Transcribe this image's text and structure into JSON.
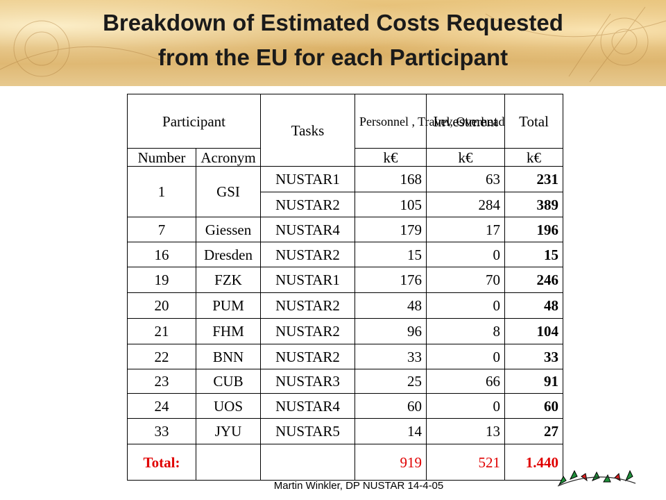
{
  "title": {
    "line1": "Breakdown of Estimated Costs Requested",
    "line2": "from the EU for each Participant"
  },
  "table": {
    "headers": {
      "participant": "Participant",
      "tasks": "Tasks",
      "personnel": "Personnel , Travel, Overhead",
      "investment": "Investment",
      "total": "Total",
      "number": "Number",
      "acronym": "Acronym",
      "unit_personnel": "k€",
      "unit_investment": "k€",
      "unit_total": "k€"
    },
    "rows": [
      {
        "number": "1",
        "acronym": "GSI",
        "task": "NUSTAR1",
        "personnel": "168",
        "investment": "63",
        "total": "231"
      },
      {
        "number": "",
        "acronym": "",
        "task": "NUSTAR2",
        "personnel": "105",
        "investment": "284",
        "total": "389"
      },
      {
        "number": "7",
        "acronym": "Giessen",
        "task": "NUSTAR4",
        "personnel": "179",
        "investment": "17",
        "total": "196"
      },
      {
        "number": "16",
        "acronym": "Dresden",
        "task": "NUSTAR2",
        "personnel": "15",
        "investment": "0",
        "total": "15"
      },
      {
        "number": "19",
        "acronym": "FZK",
        "task": "NUSTAR1",
        "personnel": "176",
        "investment": "70",
        "total": "246"
      },
      {
        "number": "20",
        "acronym": "PUM",
        "task": "NUSTAR2",
        "personnel": "48",
        "investment": "0",
        "total": "48"
      },
      {
        "number": "21",
        "acronym": "FHM",
        "task": "NUSTAR2",
        "personnel": "96",
        "investment": "8",
        "total": "104"
      },
      {
        "number": "22",
        "acronym": "BNN",
        "task": "NUSTAR2",
        "personnel": "33",
        "investment": "0",
        "total": "33"
      },
      {
        "number": "23",
        "acronym": "CUB",
        "task": "NUSTAR3",
        "personnel": "25",
        "investment": "66",
        "total": "91"
      },
      {
        "number": "24",
        "acronym": "UOS",
        "task": "NUSTAR4",
        "personnel": "60",
        "investment": "0",
        "total": "60"
      },
      {
        "number": "33",
        "acronym": "JYU",
        "task": "NUSTAR5",
        "personnel": "14",
        "investment": "13",
        "total": "27"
      }
    ],
    "totals": {
      "label": "Total:",
      "personnel": "919",
      "investment": "521",
      "total": "1.440"
    }
  },
  "footer": "Martin Winkler, DP NUSTAR 14-4-05",
  "colors": {
    "total_row": "#e00000",
    "banner": "#d9ac5f"
  },
  "logo_icon": "nustar-logo-icon"
}
